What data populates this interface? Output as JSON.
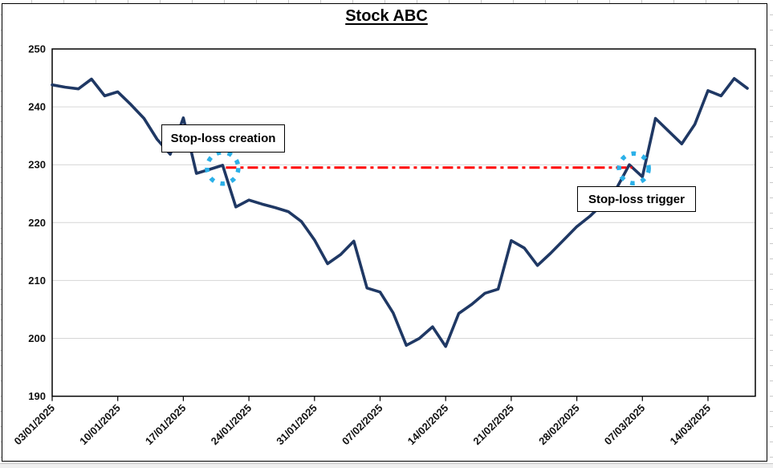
{
  "chart_data": {
    "type": "line",
    "title": "Stock ABC",
    "x": [
      "03/01/2025",
      "06/01/2025",
      "07/01/2025",
      "08/01/2025",
      "09/01/2025",
      "10/01/2025",
      "13/01/2025",
      "14/01/2025",
      "15/01/2025",
      "16/01/2025",
      "17/01/2025",
      "20/01/2025",
      "21/01/2025",
      "22/01/2025",
      "23/01/2025",
      "24/01/2025",
      "27/01/2025",
      "28/01/2025",
      "29/01/2025",
      "30/01/2025",
      "31/01/2025",
      "03/02/2025",
      "04/02/2025",
      "05/02/2025",
      "06/02/2025",
      "07/02/2025",
      "10/02/2025",
      "11/02/2025",
      "12/02/2025",
      "13/02/2025",
      "14/02/2025",
      "17/02/2025",
      "18/02/2025",
      "19/02/2025",
      "20/02/2025",
      "21/02/2025",
      "24/02/2025",
      "25/02/2025",
      "26/02/2025",
      "27/02/2025",
      "28/02/2025",
      "03/03/2025",
      "04/03/2025",
      "05/03/2025",
      "06/03/2025",
      "07/03/2025",
      "10/03/2025",
      "11/03/2025",
      "12/03/2025",
      "13/03/2025",
      "14/03/2025",
      "17/03/2025",
      "18/03/2025",
      "19/03/2025"
    ],
    "series": [
      {
        "name": "Stock ABC",
        "color": "#1f3864",
        "values": [
          243.8,
          243.4,
          243.1,
          244.8,
          241.9,
          242.6,
          240.4,
          238.0,
          234.4,
          231.8,
          238.1,
          228.5,
          229.2,
          229.9,
          222.7,
          223.9,
          223.2,
          222.6,
          221.9,
          220.2,
          217.0,
          212.9,
          214.5,
          216.8,
          208.7,
          208.0,
          204.4,
          198.8,
          200.0,
          202.0,
          198.6,
          204.3,
          205.9,
          207.8,
          208.5,
          216.9,
          215.6,
          212.6,
          214.7,
          217.0,
          219.3,
          221.1,
          223.3,
          225.8,
          230.0,
          227.9,
          238.0,
          235.8,
          233.6,
          237.0,
          242.8,
          241.9,
          244.9,
          243.2
        ]
      }
    ],
    "ylim": [
      190,
      250
    ],
    "yticks": [
      190,
      200,
      210,
      220,
      230,
      240,
      250
    ],
    "x_tick_labels": [
      "03/01/2025",
      "10/01/2025",
      "17/01/2025",
      "24/01/2025",
      "31/01/2025",
      "07/02/2025",
      "14/02/2025",
      "21/02/2025",
      "28/02/2025",
      "07/03/2025",
      "14/03/2025"
    ],
    "grid": true,
    "legend_position": "none",
    "stop_loss": {
      "level": 229.5,
      "creation_index": 13,
      "trigger_index": 44.35,
      "line_color": "#ff0000",
      "line_style": "dash-dot",
      "marker_ring_color": "#2bb0e8"
    },
    "annotations": [
      {
        "text": "Stop-loss creation"
      },
      {
        "text": "Stop-loss trigger"
      }
    ]
  },
  "colors": {
    "price_line": "#1f3864",
    "stop_loss_line": "#ff0000",
    "marker_ring": "#2bb0e8",
    "gridline": "#d6d6d6",
    "axis": "#000000"
  }
}
